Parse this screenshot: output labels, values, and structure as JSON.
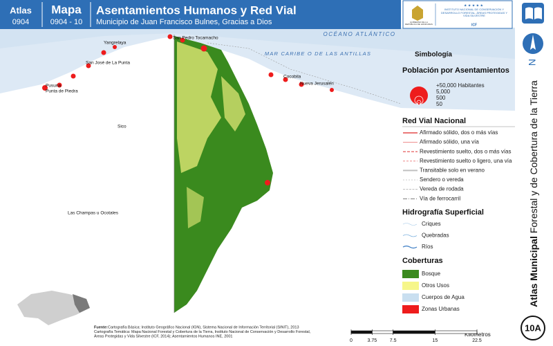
{
  "header": {
    "atlas_label": "Atlas",
    "atlas_code": "0904",
    "map_label": "Mapa",
    "map_code": "0904 - 10",
    "title": "Asentamientos Humanos y Red Vial",
    "subtitle": "Municipio de Juan Francisco Bulnes, Gracias a Dios"
  },
  "logos": {
    "government": "GOBIERNO DE LA REPÚBLICA DE HONDURAS",
    "institute": "INSTITUTO NACIONAL DE CONSERVACIÓN Y DESARROLLO FORESTAL, ÁREAS PROTEGIDAS Y VIDA SILVESTRE",
    "institute_short": "ICF"
  },
  "side": {
    "series_bold": "Atlas Municipal",
    "series_rest": "Forestal y de Cobertura de la Tierra",
    "north": "N",
    "sheet": "10A"
  },
  "map": {
    "seas": [
      "OCÉANO ATLÁNTICO",
      "MAR CARIBE O DE LAS ANTILLAS"
    ],
    "places": [
      "San Pedro Tocamacho",
      "Yangrelaya",
      "San José de La Punta",
      "Pusuna",
      "Punta de Piedra",
      "Cocobila",
      "Nueva Jerusalén",
      "Sico",
      "Las Champas u Ocotales"
    ]
  },
  "legend": {
    "title": "Simbología",
    "population": {
      "title": "Población por Asentamientos",
      "sizes": [
        "+50,000 Habitantes",
        "5,000",
        "500",
        "50"
      ]
    },
    "roads": {
      "title": "Red Vial Nacional",
      "items": [
        "Afirmado sólido, dos o más vías",
        "Afirmado sólido, una vía",
        "Revestimiento suelto, dos o más vías",
        "Revestimiento suelto o ligero, una vía",
        "Transitable solo en verano",
        "Sendero o vereda",
        "Vereda de rodada",
        "Vía de ferrocarril"
      ]
    },
    "hydro": {
      "title": "Hidrografía Superficial",
      "items": [
        "Criques",
        "Quebradas",
        "Ríos"
      ]
    },
    "cover": {
      "title": "Coberturas",
      "items": [
        {
          "label": "Bosque",
          "color": "#3a8a1e"
        },
        {
          "label": "Otros Usos",
          "color": "#f6f68a"
        },
        {
          "label": "Cuerpos de Agua",
          "color": "#c9dff0"
        },
        {
          "label": "Zonas Urbanas",
          "color": "#ee1c1c"
        }
      ]
    }
  },
  "scale": {
    "ticks": [
      0,
      3.75,
      7.5,
      15,
      22.5
    ],
    "unit": "Kilómetros"
  },
  "source": {
    "label": "Fuente:",
    "lines": [
      "Cartografía Básica: Instituto Geográfico Nacional (IGN), Sistema Nacional de Información Territorial (SINIT), 2013",
      "Cartografía Temática: Mapa Nacional Forestal y Cobertura de la Tierra, Instituto Nacional de Conservación y Desarrollo Forestal,",
      "Áreas Protegidas y Vida Silvestre (ICF, 2014); Asentamientos Humanos INE, 2001"
    ]
  }
}
